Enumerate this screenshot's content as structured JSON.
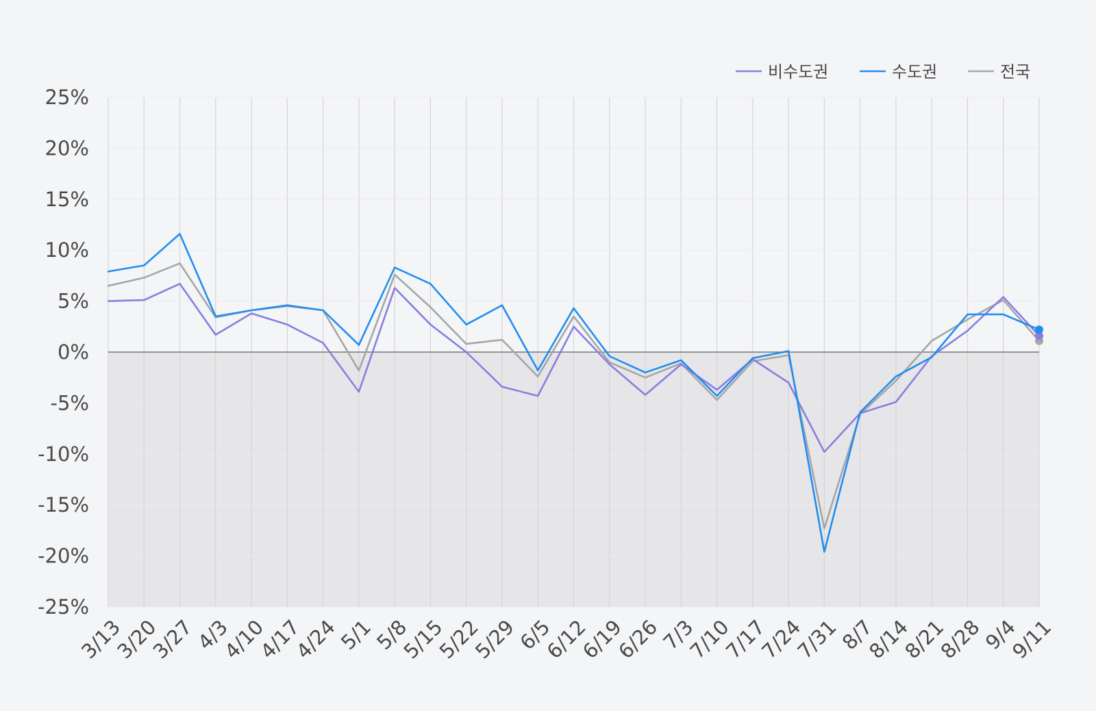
{
  "chart_data": {
    "type": "line",
    "title": "",
    "xlabel": "",
    "ylabel": "",
    "ylim": [
      -25,
      25
    ],
    "yticks": [
      25,
      20,
      15,
      10,
      5,
      0,
      -5,
      -10,
      -15,
      -20,
      -25
    ],
    "ytick_labels": [
      "25%",
      "20%",
      "15%",
      "10%",
      "5%",
      "0%",
      "-5%",
      "-10%",
      "-15%",
      "-20%",
      "-25%"
    ],
    "grid": "vertical",
    "legend_position": "top-right",
    "negative_region_shaded": true,
    "categories": [
      "3/13",
      "3/20",
      "3/27",
      "4/3",
      "4/10",
      "4/17",
      "4/24",
      "5/1",
      "5/8",
      "5/15",
      "5/22",
      "5/29",
      "6/5",
      "6/12",
      "6/19",
      "6/26",
      "7/3",
      "7/10",
      "7/17",
      "7/24",
      "7/31",
      "8/7",
      "8/14",
      "8/21",
      "8/28",
      "9/4",
      "9/11"
    ],
    "series": [
      {
        "name": "비수도권",
        "color": "#8b7de0",
        "values": [
          5.0,
          5.1,
          6.7,
          1.7,
          3.8,
          2.7,
          0.9,
          -3.9,
          6.3,
          2.7,
          0.0,
          -3.4,
          -4.3,
          2.5,
          -1.2,
          -4.2,
          -1.2,
          -3.7,
          -0.7,
          -3.0,
          -9.8,
          -6.0,
          -4.9,
          -0.4,
          2.1,
          5.4,
          1.6
        ]
      },
      {
        "name": "수도권",
        "color": "#1f8ef1",
        "values": [
          7.9,
          8.5,
          11.6,
          3.5,
          4.1,
          4.6,
          4.1,
          0.7,
          8.3,
          6.7,
          2.7,
          4.6,
          -1.8,
          4.3,
          -0.4,
          -2.0,
          -0.8,
          -4.3,
          -0.6,
          0.1,
          -19.6,
          -5.9,
          -2.4,
          -0.5,
          3.7,
          3.7,
          2.2
        ]
      },
      {
        "name": "전국",
        "color": "#a6a6a6",
        "values": [
          6.5,
          7.3,
          8.7,
          3.4,
          4.1,
          4.5,
          4.1,
          -1.8,
          7.6,
          4.4,
          0.8,
          1.2,
          -2.4,
          3.5,
          -1.0,
          -2.5,
          -1.1,
          -4.7,
          -0.9,
          -0.3,
          -17.3,
          -6.1,
          -2.8,
          1.1,
          3.2,
          5.1,
          1.1
        ]
      }
    ]
  }
}
